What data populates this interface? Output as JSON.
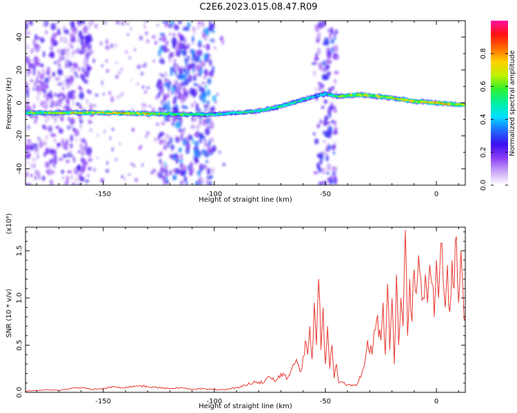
{
  "title": "C2E6.2023.015.08.47.R09",
  "colors": {
    "snr_line": "#e8322a",
    "axis": "#000000",
    "colormap": [
      "#ffffff",
      "#c9a7f5",
      "#8b3cf7",
      "#3b10f0",
      "#1e6cff",
      "#00e0ff",
      "#00f0a0",
      "#30f030",
      "#c0f000",
      "#ffd000",
      "#ff6a00",
      "#ff1010",
      "#ff10a0"
    ]
  },
  "chart_data": [
    {
      "type": "heatmap",
      "name": "spectrogram",
      "xlabel": "Height of straight line (km)",
      "ylabel": "Frequency (Hz)",
      "xlim": [
        -185,
        13
      ],
      "ylim": [
        -50,
        50
      ],
      "xticks": [
        -150,
        -100,
        -50,
        0
      ],
      "xtick_labels": [
        "-150",
        "-100",
        "-50",
        "0"
      ],
      "yticks": [
        40,
        20,
        0,
        -20,
        -40
      ],
      "ytick_labels": [
        "40",
        "20",
        "0",
        "-20",
        "-40"
      ],
      "colorbar": {
        "label": "Normalized spectral amplitude",
        "range": [
          0,
          1
        ],
        "ticks": [
          0.0,
          0.2,
          0.4,
          0.6,
          0.8
        ],
        "tick_labels": [
          "0.0",
          "0.2",
          "0.4",
          "0.6",
          "0.8"
        ]
      },
      "ridge": {
        "x": [
          -185,
          -170,
          -150,
          -130,
          -110,
          -100,
          -90,
          -80,
          -70,
          -60,
          -55,
          -50,
          -45,
          -40,
          -35,
          -30,
          -20,
          -10,
          0,
          10,
          13
        ],
        "frequency": [
          -6,
          -6,
          -6,
          -6.5,
          -7,
          -7,
          -6,
          -5,
          -2,
          2,
          4,
          5.5,
          4,
          4.5,
          5,
          4.5,
          3,
          1,
          0,
          -1,
          -1
        ],
        "peak_amplitude": [
          0.7,
          0.75,
          0.8,
          0.8,
          0.6,
          0.55,
          0.6,
          0.65,
          0.6,
          0.55,
          0.5,
          0.5,
          0.7,
          0.75,
          0.85,
          0.8,
          0.8,
          0.85,
          0.9,
          0.85,
          0.8
        ]
      },
      "noise_bands": [
        {
          "x_range": [
            -185,
            -155
          ],
          "level": 0.25
        },
        {
          "x_range": [
            -125,
            -100
          ],
          "level": 0.35
        },
        {
          "x_range": [
            -55,
            -45
          ],
          "level": 0.3
        }
      ]
    },
    {
      "type": "line",
      "name": "snr",
      "xlabel": "Height of straight line (km)",
      "ylabel": "SNR (10 * v/v)",
      "multiplier": "(x10⁴)",
      "xlim": [
        -185,
        13
      ],
      "ylim": [
        0,
        1.75
      ],
      "xticks": [
        -150,
        -100,
        -50,
        0
      ],
      "xtick_labels": [
        "-150",
        "-100",
        "-50",
        "0"
      ],
      "yticks": [
        0.0,
        0.5,
        1.0,
        1.5
      ],
      "ytick_labels": [
        "0.0",
        "0.5",
        "1.0",
        "1.5"
      ],
      "series": [
        {
          "x": [
            -185,
            -180,
            -175,
            -170,
            -165,
            -160,
            -155,
            -150,
            -145,
            -140,
            -135,
            -130,
            -125,
            -120,
            -115,
            -110,
            -105,
            -100,
            -95,
            -90,
            -85,
            -82,
            -78,
            -75,
            -72,
            -70,
            -67,
            -65,
            -63,
            -61,
            -59,
            -58,
            -57,
            -56,
            -55,
            -54,
            -53,
            -52,
            -51,
            -50,
            -49,
            -48,
            -47,
            -46,
            -45,
            -44,
            -42,
            -40,
            -38,
            -36,
            -35,
            -33,
            -31,
            -29,
            -27,
            -25,
            -24,
            -23,
            -22,
            -21,
            -20,
            -19,
            -18,
            -17,
            -16,
            -15,
            -14,
            -13,
            -12,
            -11,
            -10,
            -9,
            -8,
            -7,
            -6,
            -5,
            -4,
            -3,
            -2,
            -1,
            0,
            1,
            2,
            3,
            4,
            5,
            6,
            7,
            8,
            9,
            10,
            11,
            12,
            13
          ],
          "y": [
            0.01,
            0.02,
            0.03,
            0.02,
            0.04,
            0.05,
            0.03,
            0.04,
            0.06,
            0.05,
            0.07,
            0.06,
            0.05,
            0.04,
            0.05,
            0.03,
            0.04,
            0.03,
            0.03,
            0.05,
            0.08,
            0.12,
            0.1,
            0.16,
            0.13,
            0.2,
            0.15,
            0.26,
            0.35,
            0.22,
            0.55,
            0.4,
            0.7,
            0.35,
            0.95,
            0.5,
            1.2,
            0.45,
            0.9,
            0.3,
            0.7,
            0.25,
            0.5,
            0.15,
            0.3,
            0.1,
            0.1,
            0.08,
            0.08,
            0.07,
            0.12,
            0.25,
            0.55,
            0.4,
            0.75,
            0.55,
            0.95,
            0.4,
            1.15,
            0.45,
            1.0,
            0.3,
            1.25,
            0.5,
            1.0,
            0.7,
            1.72,
            0.6,
            1.2,
            0.75,
            1.3,
            1.05,
            1.45,
            1.2,
            1.0,
            1.25,
            0.95,
            1.35,
            1.15,
            0.8,
            1.4,
            1.0,
            1.58,
            1.2,
            0.9,
            1.35,
            0.85,
            1.4,
            1.1,
            1.65,
            0.95,
            1.5,
            1.05,
            0.78
          ]
        }
      ]
    }
  ]
}
